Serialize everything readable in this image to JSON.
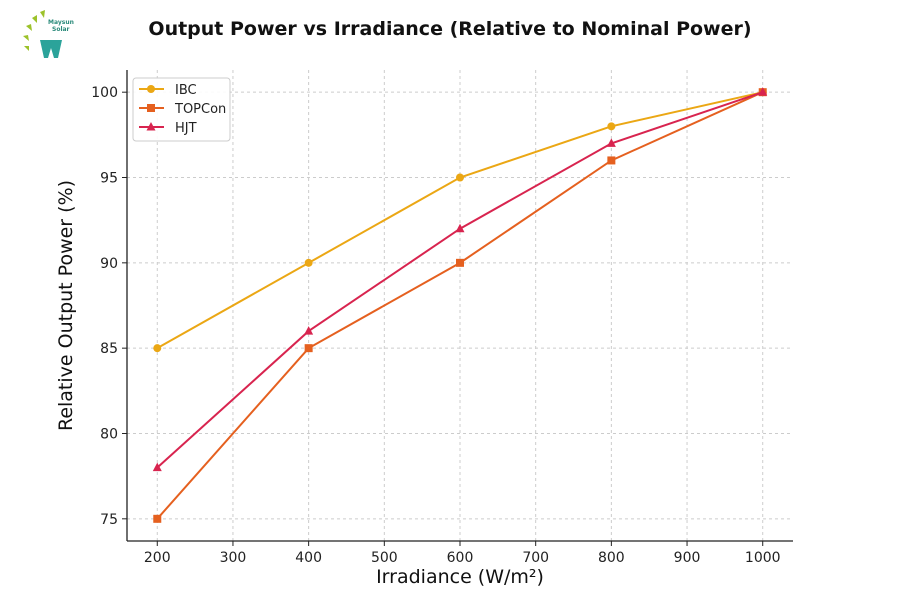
{
  "logo": {
    "text": "Maysun Solar"
  },
  "chart_data": {
    "type": "line",
    "title": "Output Power vs Irradiance (Relative to Nominal Power)",
    "xlabel": "Irradiance (W/m²)",
    "ylabel": "Relative Output Power (%)",
    "x": [
      200,
      400,
      600,
      800,
      1000
    ],
    "xlim": [
      160,
      1040
    ],
    "ylim": [
      73.7,
      101.3
    ],
    "xticks": [
      200,
      300,
      400,
      500,
      600,
      700,
      800,
      900,
      1000
    ],
    "yticks": [
      75,
      80,
      85,
      90,
      95,
      100
    ],
    "grid": true,
    "legend": "top-left",
    "series": [
      {
        "name": "IBC",
        "values": [
          85,
          90,
          95,
          98,
          100
        ],
        "color": "#EBA714",
        "marker": "circle"
      },
      {
        "name": "TOPCon",
        "values": [
          75,
          85,
          90,
          96,
          100
        ],
        "color": "#E5601F",
        "marker": "square"
      },
      {
        "name": "HJT",
        "values": [
          78,
          86,
          92,
          97,
          100
        ],
        "color": "#D8244F",
        "marker": "triangle"
      }
    ]
  }
}
